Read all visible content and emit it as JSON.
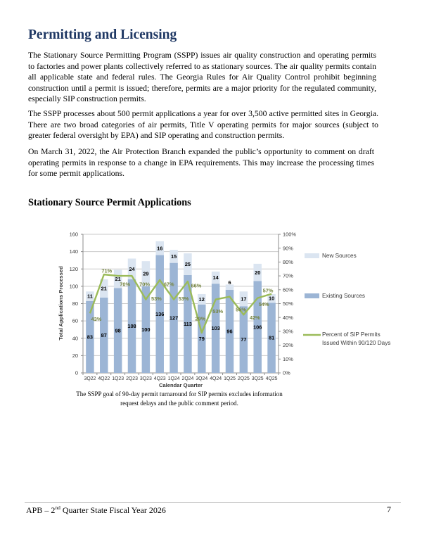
{
  "page": {
    "title": "Permitting and Licensing",
    "paragraphs": [
      "The Stationary Source Permitting Program (SSPP) issues air quality construction and operating permits to factories and power plants collectively referred to as stationary sources.  The air quality permits contain all applicable state and federal rules. The Georgia Rules for Air Quality Control prohibit beginning construction until a permit is issued; therefore, permits are a major priority for the regulated community, especially SIP construction permits.",
      "The SSPP processes about 500 permit applications a year for over 3,500 active permitted sites in Georgia. There are two broad categories of air permits, Title V operating permits for major sources (subject to greater federal oversight by EPA) and SIP operating and construction permits.",
      "On March 31, 2022, the Air Protection Branch expanded the public’s opportunity to comment on draft operating permits in response to a change in EPA requirements.  This may increase the processing times for some permit applications."
    ],
    "section_heading": "Stationary Source Permit Applications",
    "caption_lines": [
      "The SSPP goal of 90-day permit turnaround for SIP permits excludes information",
      "request delays and the public comment period."
    ],
    "footer": {
      "left_prefix": "APB – 2",
      "ordinal_suffix": "nd",
      "left_rest": " Quarter State Fiscal Year 2026",
      "page_number": "7"
    }
  },
  "chart_data": {
    "type": "bar",
    "subtype": "stacked-column-with-line",
    "categories": [
      "3Q22",
      "4Q22",
      "1Q23",
      "2Q23",
      "3Q23",
      "4Q23",
      "1Q24",
      "2Q24",
      "3Q24",
      "4Q24",
      "1Q25",
      "2Q25",
      "3Q25",
      "4Q25"
    ],
    "series": [
      {
        "name": "Existing Sources",
        "chart": "bar",
        "values": [
          83,
          87,
          98,
          108,
          100,
          136,
          127,
          113,
          79,
          103,
          96,
          77,
          106,
          81
        ],
        "color": "#9CB5D5"
      },
      {
        "name": "New Sources",
        "chart": "bar",
        "values": [
          11,
          21,
          21,
          24,
          29,
          16,
          15,
          25,
          12,
          14,
          6,
          17,
          20,
          10
        ],
        "color": "#DBE5F1"
      },
      {
        "name": "Percent of SIP Permits Issued Within 90/120 Days",
        "chart": "line",
        "axis": "secondary",
        "unit": "%",
        "values": [
          43,
          71,
          70,
          70,
          53,
          67,
          53,
          66,
          29,
          53,
          55,
          42,
          54,
          57
        ],
        "color": "#9BBB59",
        "label_color": "#75843F"
      }
    ],
    "xlabel": "Calendar Quarter",
    "ylabel": "Total Applications Processed",
    "ylim": [
      0,
      160
    ],
    "ytick": 20,
    "y2lim": [
      0,
      100
    ],
    "y2tick": 10,
    "y2suffix": "%",
    "legend": [
      {
        "label": "New Sources",
        "swatch": "bar",
        "color": "#DBE5F1"
      },
      {
        "label": "Existing Sources",
        "swatch": "bar",
        "color": "#9CB5D5"
      },
      {
        "label": "Percent of SIP Permits Issued Within 90/120 Days",
        "label_lines": [
          "Percent of SIP Permits",
          "Issued Within 90/120 Days"
        ],
        "swatch": "line",
        "color": "#9BBB59"
      }
    ],
    "gridlines": true
  }
}
